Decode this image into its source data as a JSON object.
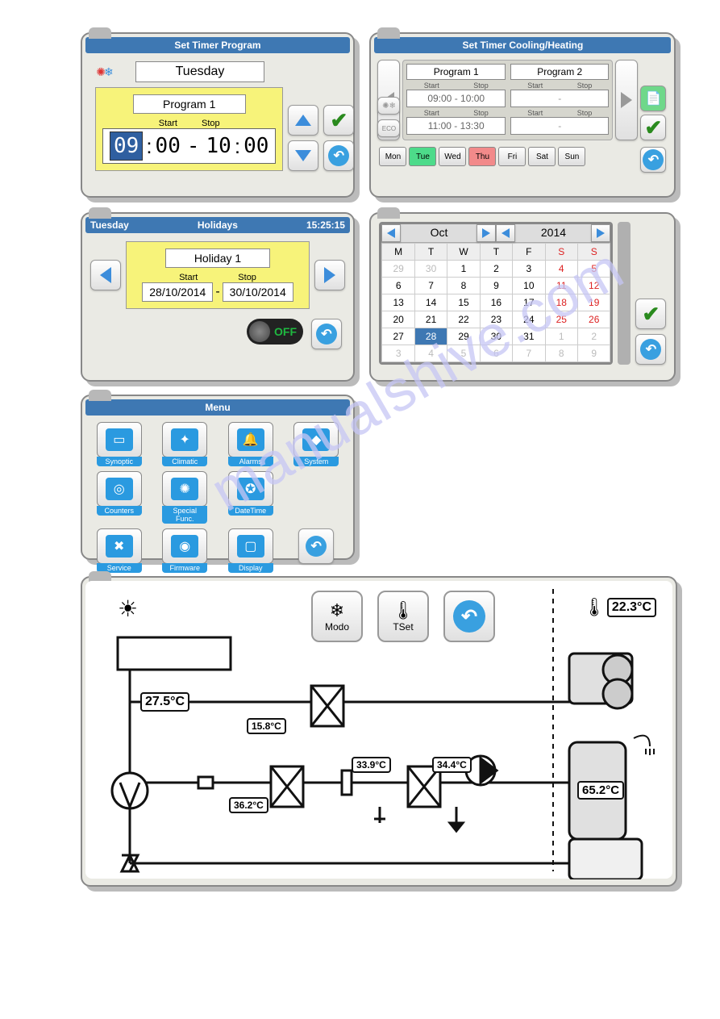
{
  "panel_timer": {
    "title": "Set Timer Program",
    "day": "Tuesday",
    "program": "Program 1",
    "start_lbl": "Start",
    "stop_lbl": "Stop",
    "start_hh": "09",
    "start_mm": "00",
    "stop_hh": "10",
    "stop_mm": "00"
  },
  "panel_cooling": {
    "title": "Set Timer Cooling/Heating",
    "prog1": "Program 1",
    "prog2": "Program 2",
    "start_lbl": "Start",
    "stop_lbl": "Stop",
    "slot1": "09:00 - 10:00",
    "slot2": "11:00 - 13:30",
    "dash": "-",
    "eco": "ECO",
    "days": [
      "Mon",
      "Tue",
      "Wed",
      "Thu",
      "Fri",
      "Sat",
      "Sun"
    ],
    "selected_day_index": 1,
    "holiday_index": 3
  },
  "panel_holidays": {
    "day": "Tuesday",
    "title": "Holidays",
    "time": "15:25:15",
    "holiday": "Holiday 1",
    "start_lbl": "Start",
    "stop_lbl": "Stop",
    "start_date": "28/10/2014",
    "stop_date": "30/10/2014",
    "off": "OFF"
  },
  "panel_calendar": {
    "month": "Oct",
    "year": "2014",
    "headers": [
      "M",
      "T",
      "W",
      "T",
      "F",
      "S",
      "S"
    ],
    "rows": [
      [
        {
          "d": "29",
          "g": 1
        },
        {
          "d": "30",
          "g": 1
        },
        {
          "d": "1"
        },
        {
          "d": "2"
        },
        {
          "d": "3"
        },
        {
          "d": "4",
          "r": 1
        },
        {
          "d": "5",
          "r": 1
        }
      ],
      [
        {
          "d": "6"
        },
        {
          "d": "7"
        },
        {
          "d": "8"
        },
        {
          "d": "9"
        },
        {
          "d": "10"
        },
        {
          "d": "11",
          "r": 1
        },
        {
          "d": "12",
          "r": 1
        }
      ],
      [
        {
          "d": "13"
        },
        {
          "d": "14"
        },
        {
          "d": "15"
        },
        {
          "d": "16"
        },
        {
          "d": "17"
        },
        {
          "d": "18",
          "r": 1
        },
        {
          "d": "19",
          "r": 1
        }
      ],
      [
        {
          "d": "20"
        },
        {
          "d": "21"
        },
        {
          "d": "22"
        },
        {
          "d": "23"
        },
        {
          "d": "24"
        },
        {
          "d": "25",
          "r": 1
        },
        {
          "d": "26",
          "r": 1
        }
      ],
      [
        {
          "d": "27"
        },
        {
          "d": "28",
          "s": 1
        },
        {
          "d": "29"
        },
        {
          "d": "30"
        },
        {
          "d": "31"
        },
        {
          "d": "1",
          "g": 1
        },
        {
          "d": "2",
          "g": 1
        }
      ],
      [
        {
          "d": "3",
          "g": 1
        },
        {
          "d": "4",
          "g": 1
        },
        {
          "d": "5",
          "g": 1
        },
        {
          "d": "6",
          "g": 1
        },
        {
          "d": "7",
          "g": 1
        },
        {
          "d": "8",
          "g": 1
        },
        {
          "d": "9",
          "g": 1
        }
      ]
    ]
  },
  "panel_menu": {
    "title": "Menu",
    "items": [
      {
        "label": "Synoptic",
        "glyph": "▭"
      },
      {
        "label": "Climatic",
        "glyph": "✦"
      },
      {
        "label": "Alarms",
        "glyph": "🔔"
      },
      {
        "label": "System",
        "glyph": "◆"
      },
      {
        "label": "Counters",
        "glyph": "◎"
      },
      {
        "label": "Special Func.",
        "glyph": "✺"
      },
      {
        "label": "DateTime",
        "glyph": "✪"
      },
      {
        "label": "",
        "glyph": ""
      },
      {
        "label": "Service",
        "glyph": "✖"
      },
      {
        "label": "Firmware",
        "glyph": "◉"
      },
      {
        "label": "Display",
        "glyph": "▢"
      }
    ]
  },
  "panel_synoptic": {
    "modo": "Modo",
    "tset": "TSet",
    "t_ambient": "22.3°C",
    "t1": "27.5°C",
    "t2": "15.8°C",
    "t3": "36.2°C",
    "t4": "33.9°C",
    "t5": "34.4°C",
    "t6": "65.2°C"
  },
  "colors": {
    "titlebar": "#3e78b3",
    "panel_bg": "#eaeae4",
    "yellow": "#f7f37a",
    "accent": "#2a9ae0",
    "day_sel": "#4ddb8a",
    "day_hol": "#f28a8a"
  }
}
